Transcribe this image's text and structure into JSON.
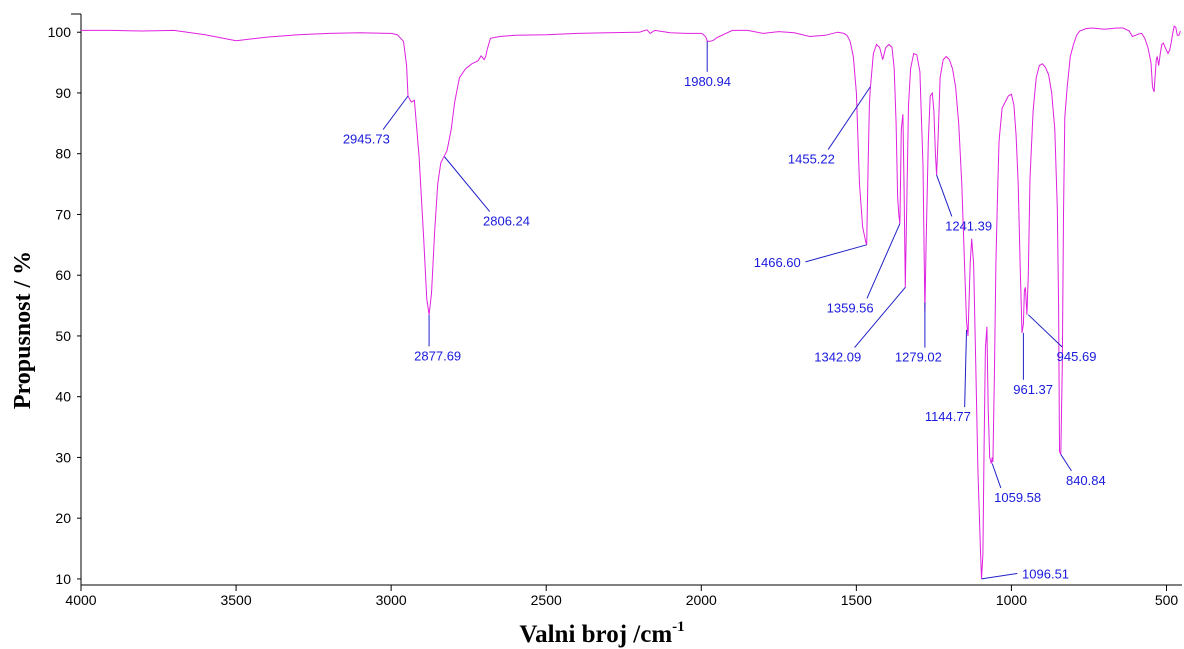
{
  "chart_data": {
    "type": "line",
    "title": "",
    "xlabel": "Valni broj /cm",
    "xlabel_sup": "-1",
    "ylabel": "Propusnost / %",
    "xlim": [
      4000,
      450
    ],
    "ylim": [
      9,
      103
    ],
    "x_reversed": true,
    "grid": false,
    "x_ticks": [
      4000,
      3500,
      3000,
      2500,
      2000,
      1500,
      1000,
      500
    ],
    "y_ticks": [
      10,
      20,
      30,
      40,
      50,
      60,
      70,
      80,
      90,
      100
    ],
    "series": [
      {
        "name": "",
        "color": "#e020e0",
        "x": [
          4000,
          3900,
          3800,
          3700,
          3600,
          3500,
          3400,
          3300,
          3200,
          3100,
          3000,
          2980,
          2960,
          2950,
          2945.73,
          2935,
          2925,
          2910,
          2895,
          2885,
          2877.69,
          2870,
          2860,
          2850,
          2840,
          2830,
          2820,
          2806.24,
          2795,
          2780,
          2760,
          2740,
          2720,
          2710,
          2700,
          2695,
          2690,
          2680,
          2650,
          2600,
          2500,
          2400,
          2300,
          2200,
          2175,
          2165,
          2150,
          2100,
          2050,
          2000,
          1995,
          1985,
          1980.94,
          1970,
          1960,
          1950,
          1900,
          1850,
          1800,
          1750,
          1700,
          1650,
          1600,
          1560,
          1540,
          1530,
          1520,
          1510,
          1500,
          1490,
          1480,
          1470,
          1466.6,
          1462,
          1458,
          1455.22,
          1445,
          1435,
          1425,
          1420,
          1415,
          1405,
          1395,
          1385,
          1378,
          1372,
          1367,
          1363,
          1359.56,
          1355,
          1350,
          1346,
          1342.09,
          1338,
          1332,
          1325,
          1315,
          1305,
          1295,
          1285,
          1279.02,
          1275,
          1268,
          1262,
          1255,
          1250,
          1245,
          1241.39,
          1236,
          1230,
          1220,
          1210,
          1200,
          1190,
          1180,
          1170,
          1160,
          1150,
          1144.77,
          1140,
          1133,
          1128,
          1122,
          1115,
          1108,
          1100,
          1096.51,
          1092,
          1088,
          1084,
          1079,
          1075,
          1070,
          1065,
          1062,
          1059.58,
          1055,
          1050,
          1045,
          1040,
          1030,
          1020,
          1010,
          1000,
          992,
          985,
          978,
          972,
          966,
          961.37,
          958,
          955,
          950,
          945.69,
          940,
          930,
          920,
          910,
          900,
          890,
          880,
          870,
          860,
          852,
          848,
          845,
          840.84,
          836,
          832,
          828,
          820,
          810,
          800,
          790,
          780,
          760,
          740,
          720,
          700,
          680,
          660,
          640,
          620,
          610,
          600,
          590,
          580,
          570,
          560,
          550,
          545,
          540,
          537,
          533,
          530,
          525,
          520,
          515,
          510,
          505,
          500,
          495,
          490,
          485,
          480,
          475,
          470,
          465,
          460,
          455
        ],
        "y": [
          100.3,
          100.3,
          100.2,
          100.3,
          99.6,
          98.6,
          99.2,
          99.6,
          99.8,
          99.9,
          99.8,
          99.6,
          98.5,
          94.5,
          89.5,
          88.5,
          88.8,
          79.5,
          66,
          56,
          53.5,
          57,
          67,
          75,
          78.5,
          79.5,
          80.5,
          84,
          88.5,
          92.5,
          94,
          94.8,
          95.3,
          96.1,
          95.5,
          96,
          97.2,
          99,
          99.3,
          99.5,
          99.6,
          99.8,
          99.9,
          100,
          100.4,
          99.8,
          100.3,
          99.9,
          99.8,
          99.8,
          99.7,
          99.2,
          98.5,
          98.5,
          98.7,
          99.1,
          100.3,
          100.3,
          99.8,
          100.1,
          99.9,
          99.3,
          99.5,
          100,
          99.8,
          99.5,
          98.5,
          96,
          90,
          75,
          68,
          65.5,
          65,
          78,
          88,
          90.5,
          96.5,
          98,
          97.5,
          96.5,
          95.5,
          97.5,
          98,
          97.5,
          94,
          85,
          73,
          70,
          68.5,
          84,
          86.5,
          74,
          58,
          70,
          88,
          94,
          96.5,
          96.3,
          93.5,
          78,
          54,
          65,
          82,
          89.5,
          90,
          87,
          80,
          76.5,
          83,
          92.5,
          95.5,
          96,
          95.5,
          94,
          91,
          85,
          75,
          60,
          52.5,
          50,
          62,
          66,
          62,
          45,
          28,
          15,
          10,
          14,
          32,
          48,
          51.5,
          38,
          30,
          29,
          30,
          29.2,
          43.5,
          62,
          73,
          82,
          87.5,
          88.5,
          89.5,
          89.8,
          88,
          83,
          75,
          62,
          50.5,
          52,
          57.5,
          58,
          53.5,
          60,
          76,
          87,
          92.5,
          94.5,
          94.8,
          94.2,
          93,
          90,
          84,
          71,
          55,
          31,
          30.5,
          45,
          70,
          86,
          91,
          96,
          98,
          99.5,
          100.2,
          100.6,
          100.7,
          100.6,
          100.5,
          100.6,
          100.7,
          100.7,
          100.2,
          99.3,
          99.5,
          99.7,
          99.8,
          99,
          97.5,
          95,
          91,
          90.2,
          92.5,
          95.5,
          96,
          94.5,
          96.5,
          98,
          98.2,
          97.6,
          97,
          96.5,
          97,
          98.2,
          99.8,
          101,
          100.8,
          99.5,
          99.5,
          100.2
        ]
      }
    ],
    "peak_labels": [
      {
        "text": "2945.73",
        "peak_x": 2945.73,
        "peak_y": 89.5,
        "label_x": 3080,
        "label_y": 82.5
      },
      {
        "text": "2806.24",
        "peak_x": 2828,
        "peak_y": 79.5,
        "label_x": 2628,
        "label_y": 69
      },
      {
        "text": "2877.69",
        "peak_x": 2877.69,
        "peak_y": 53.5,
        "label_x": 2850,
        "label_y": 46.8
      },
      {
        "text": "1980.94",
        "peak_x": 1980.94,
        "peak_y": 98.5,
        "label_x": 1980,
        "label_y": 92
      },
      {
        "text": "1455.22",
        "peak_x": 1455.22,
        "peak_y": 91,
        "label_x": 1645,
        "label_y": 79.2
      },
      {
        "text": "1466.60",
        "peak_x": 1466.6,
        "peak_y": 65,
        "label_x": 1755,
        "label_y": 62.2
      },
      {
        "text": "1359.56",
        "peak_x": 1359.56,
        "peak_y": 68.5,
        "label_x": 1520,
        "label_y": 54.7
      },
      {
        "text": "1342.09",
        "peak_x": 1342.09,
        "peak_y": 58,
        "label_x": 1560,
        "label_y": 46.6
      },
      {
        "text": "1279.02",
        "peak_x": 1279.02,
        "peak_y": 55.5,
        "label_x": 1300,
        "label_y": 46.6
      },
      {
        "text": "1241.39",
        "peak_x": 1241.39,
        "peak_y": 76.5,
        "label_x": 1138,
        "label_y": 68.2
      },
      {
        "text": "1144.77",
        "peak_x": 1144.77,
        "peak_y": 51,
        "label_x": 1205,
        "label_y": 36.8
      },
      {
        "text": "961.37",
        "peak_x": 961.37,
        "peak_y": 50.5,
        "label_x": 930,
        "label_y": 41.3
      },
      {
        "text": "945.69",
        "peak_x": 945.69,
        "peak_y": 53.5,
        "label_x": 790,
        "label_y": 46.7
      },
      {
        "text": "1059.58",
        "peak_x": 1062,
        "peak_y": 29,
        "label_x": 980,
        "label_y": 23.5
      },
      {
        "text": "840.84",
        "peak_x": 840.84,
        "peak_y": 30.5,
        "label_x": 760,
        "label_y": 26.3
      },
      {
        "text": "1096.51",
        "peak_x": 1096.51,
        "peak_y": 10,
        "label_x": 890,
        "label_y": 10.9
      }
    ],
    "label_color": "#1a1adc",
    "leader_color": "#2020c8"
  }
}
